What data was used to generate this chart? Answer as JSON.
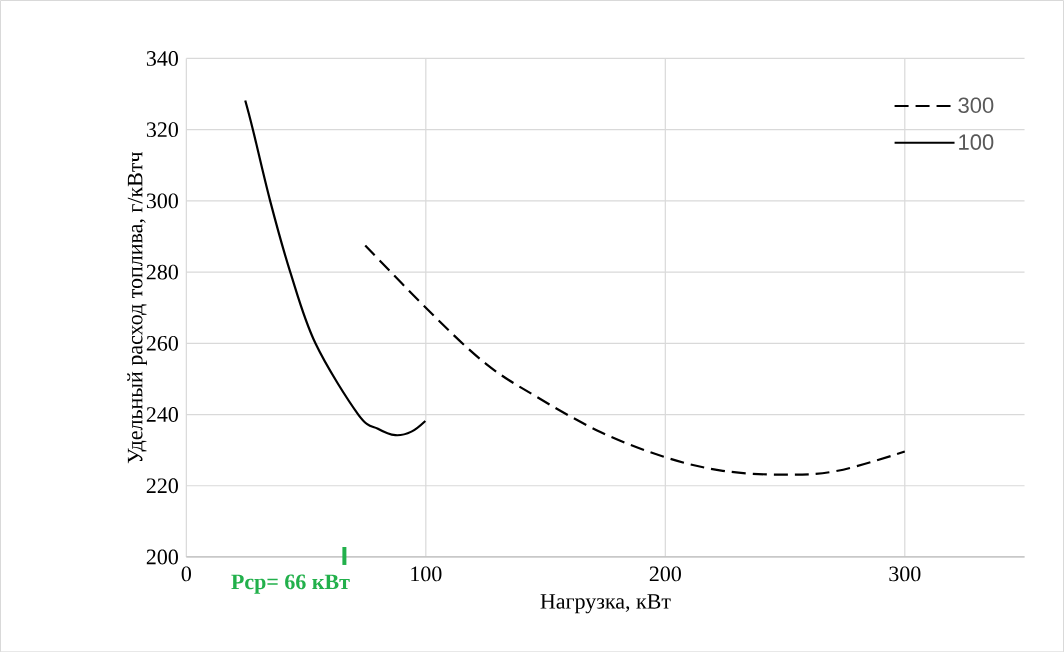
{
  "chart_data": {
    "type": "line",
    "xlabel": "Нагрузка, кВт",
    "ylabel": "Удельный расход топлива, г/кВтч",
    "xlim": [
      0,
      350
    ],
    "xticks": [
      0,
      100,
      200,
      300
    ],
    "ylim": [
      200,
      340
    ],
    "yticks": [
      200,
      220,
      240,
      260,
      280,
      300,
      320,
      340
    ],
    "grid": true,
    "legend": "top right",
    "marker": "none",
    "series": [
      {
        "name": "300",
        "color": "#000000",
        "line_style": "dashed",
        "x": [
          74.7,
          101.9,
          125,
          145.7,
          172.9,
          200,
          224,
          249.7,
          272,
          300
        ],
        "values": [
          287.5,
          268.7,
          254.3,
          245.2,
          235.1,
          228,
          224.2,
          223.1,
          224.2,
          229.6
        ]
      },
      {
        "name": "100",
        "color": "#000000",
        "line_style": "solid",
        "x": [
          24.6,
          27.8,
          35,
          43.4,
          53.9,
          71.8,
          80,
          87.3,
          94,
          99.8
        ],
        "values": [
          328.2,
          320,
          300,
          280,
          260,
          240,
          236,
          234.2,
          235.2,
          238.2
        ]
      }
    ],
    "ref_lines": [
      {
        "axis": "x",
        "value": 66,
        "label": "Рср= 66 кВт",
        "color": "#22b04b"
      }
    ]
  }
}
